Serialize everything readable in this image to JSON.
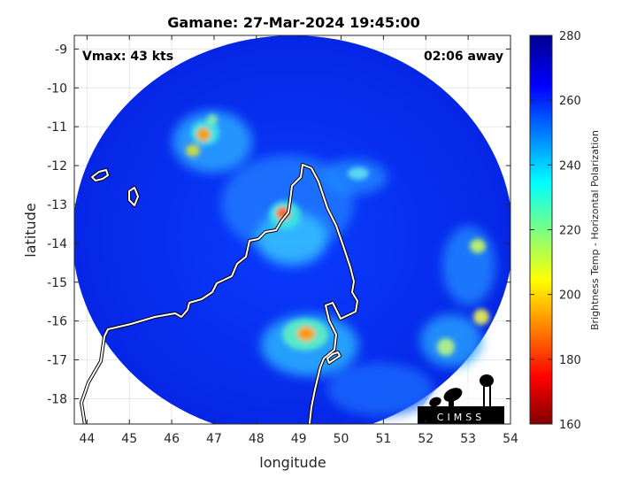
{
  "chart_data": {
    "type": "heatmap",
    "title": "Gamane: 27-Mar-2024 19:45:00",
    "xlabel": "longitude",
    "ylabel": "latitude",
    "xlim": [
      43.7,
      54
    ],
    "ylim": [
      -18.65,
      -8.65
    ],
    "xticks": [
      "44",
      "45",
      "46",
      "47",
      "48",
      "49",
      "50",
      "51",
      "52",
      "53",
      "54"
    ],
    "xtick_values": [
      44,
      45,
      46,
      47,
      48,
      49,
      50,
      51,
      52,
      53,
      54
    ],
    "yticks": [
      "-9",
      "-10",
      "-11",
      "-12",
      "-13",
      "-14",
      "-15",
      "-16",
      "-17",
      "-18"
    ],
    "ytick_values": [
      -9,
      -10,
      -11,
      -12,
      -13,
      -14,
      -15,
      -16,
      -17,
      -18
    ],
    "grid": true,
    "annotations": {
      "vmax": "Vmax: 43 kts",
      "time_away": "02:06 away"
    },
    "colorbar": {
      "label": "Brightness Temp - Horizontal Polarization",
      "range": [
        160,
        280
      ],
      "ticks": [
        "160",
        "180",
        "200",
        "220",
        "240",
        "260",
        "280"
      ],
      "tick_values": [
        160,
        180,
        200,
        220,
        240,
        260,
        280
      ],
      "colormap": [
        "#800000",
        "#ff0000",
        "#ffff00",
        "#00ffff",
        "#0000ff",
        "#00008f"
      ]
    },
    "swath": {
      "center_lon": 48.85,
      "center_lat": -13.65,
      "background_temp": 268
    },
    "features": [
      {
        "name": "storm-core",
        "lon": 48.65,
        "lat": -13.3,
        "temp": 190
      },
      {
        "name": "convection-north-west",
        "lon": 46.8,
        "lat": -11.3,
        "temp": 200
      },
      {
        "name": "convection-west",
        "lon": 46.5,
        "lat": -11.7,
        "temp": 215
      },
      {
        "name": "rainband-south",
        "lon": 49.3,
        "lat": -16.4,
        "temp": 205
      },
      {
        "name": "band-east",
        "lon": 53.2,
        "lat": -14.1,
        "temp": 215
      },
      {
        "name": "band-southeast",
        "lon": 53.4,
        "lat": -16.0,
        "temp": 222
      },
      {
        "name": "band-far-southeast",
        "lon": 52.7,
        "lat": -16.7,
        "temp": 225
      }
    ],
    "logo": {
      "text": "CIMSS"
    }
  }
}
